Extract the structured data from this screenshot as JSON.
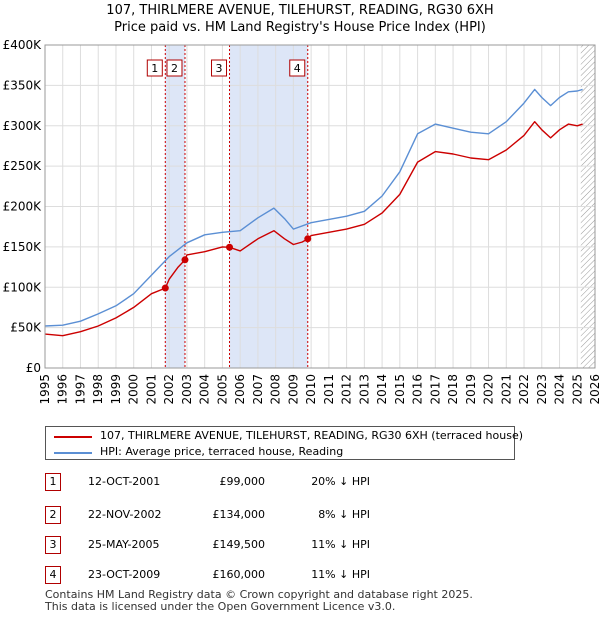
{
  "header": {
    "title_line1": "107, THIRLMERE AVENUE, TILEHURST, READING, RG30 6XH",
    "title_line2": "Price paid vs. HM Land Registry's House Price Index (HPI)"
  },
  "colors": {
    "property_line": "#cc0000",
    "hpi_line": "#5b8fd4",
    "shade": "#dde6f7",
    "grid": "#dddddd",
    "marker": "#cc0000",
    "badge_border": "#b00000"
  },
  "chart_data": {
    "type": "line",
    "title": "107, THIRLMERE AVENUE, TILEHURST, READING, RG30 6XH — Price paid vs. HM Land Registry's House Price Index (HPI)",
    "xlabel": "",
    "ylabel": "",
    "xlim": [
      1995,
      2026
    ],
    "ylim": [
      0,
      400000
    ],
    "x_ticks": [
      1995,
      1996,
      1997,
      1998,
      1999,
      2000,
      2001,
      2002,
      2003,
      2004,
      2005,
      2006,
      2007,
      2008,
      2009,
      2010,
      2011,
      2012,
      2013,
      2014,
      2015,
      2016,
      2017,
      2018,
      2019,
      2020,
      2021,
      2022,
      2023,
      2024,
      2025,
      2026
    ],
    "y_ticks": [
      {
        "value": 0,
        "label": "£0"
      },
      {
        "value": 50000,
        "label": "£50K"
      },
      {
        "value": 100000,
        "label": "£100K"
      },
      {
        "value": 150000,
        "label": "£150K"
      },
      {
        "value": 200000,
        "label": "£200K"
      },
      {
        "value": 250000,
        "label": "£250K"
      },
      {
        "value": 300000,
        "label": "£300K"
      },
      {
        "value": 350000,
        "label": "£350K"
      },
      {
        "value": 400000,
        "label": "£400K"
      }
    ],
    "grid": true,
    "shaded_ranges": [
      [
        2001.78,
        2002.89
      ],
      [
        2005.4,
        2009.81
      ]
    ],
    "future_hatch_from": 2025.2,
    "series": [
      {
        "name": "107, THIRLMERE AVENUE, TILEHURST, READING, RG30 6XH (terraced house)",
        "x": [
          1995,
          1996,
          1997,
          1998,
          1999,
          2000,
          2001,
          2001.78,
          2002,
          2002.5,
          2002.89,
          2003,
          2004,
          2005,
          2005.4,
          2006,
          2007,
          2007.9,
          2008.5,
          2009,
          2009.5,
          2009.81,
          2010,
          2011,
          2012,
          2013,
          2014,
          2015,
          2016,
          2017,
          2018,
          2019,
          2020,
          2021,
          2022,
          2022.6,
          2023,
          2023.5,
          2024,
          2024.5,
          2025,
          2025.3
        ],
        "values": [
          42000,
          40000,
          45000,
          52000,
          62000,
          75000,
          92000,
          99000,
          110000,
          125000,
          134000,
          140000,
          144000,
          150000,
          149500,
          145000,
          160000,
          170000,
          160000,
          153000,
          156000,
          160000,
          164000,
          168000,
          172000,
          178000,
          192000,
          215000,
          255000,
          268000,
          265000,
          260000,
          258000,
          270000,
          288000,
          305000,
          295000,
          285000,
          295000,
          302000,
          300000,
          302000
        ]
      },
      {
        "name": "HPI: Average price, terraced house, Reading",
        "x": [
          1995,
          1996,
          1997,
          1998,
          1999,
          2000,
          2001,
          2002,
          2003,
          2004,
          2005,
          2006,
          2007,
          2007.9,
          2008.5,
          2009,
          2010,
          2011,
          2012,
          2013,
          2014,
          2015,
          2016,
          2017,
          2018,
          2019,
          2020,
          2021,
          2022,
          2022.6,
          2023,
          2023.5,
          2024,
          2024.5,
          2025,
          2025.3
        ],
        "values": [
          52000,
          53000,
          58000,
          67000,
          77000,
          92000,
          115000,
          138000,
          155000,
          165000,
          168000,
          170000,
          186000,
          198000,
          185000,
          172000,
          180000,
          184000,
          188000,
          194000,
          213000,
          243000,
          290000,
          302000,
          297000,
          292000,
          290000,
          305000,
          328000,
          345000,
          335000,
          325000,
          335000,
          342000,
          343000,
          345000
        ]
      }
    ],
    "sales": [
      {
        "n": "1",
        "x": 2001.78,
        "value": 99000
      },
      {
        "n": "2",
        "x": 2002.89,
        "value": 134000
      },
      {
        "n": "3",
        "x": 2005.4,
        "value": 149500
      },
      {
        "n": "4",
        "x": 2009.81,
        "value": 160000
      }
    ]
  },
  "legend": {
    "property_label": "107, THIRLMERE AVENUE, TILEHURST, READING, RG30 6XH (terraced house)",
    "hpi_label": "HPI: Average price, terraced house, Reading"
  },
  "sales_table": [
    {
      "n": "1",
      "date": "12-OCT-2001",
      "price": "£99,000",
      "hpi": "20% ↓ HPI"
    },
    {
      "n": "2",
      "date": "22-NOV-2002",
      "price": "£134,000",
      "hpi": "8% ↓ HPI"
    },
    {
      "n": "3",
      "date": "25-MAY-2005",
      "price": "£149,500",
      "hpi": "11% ↓ HPI"
    },
    {
      "n": "4",
      "date": "23-OCT-2009",
      "price": "£160,000",
      "hpi": "11% ↓ HPI"
    }
  ],
  "footer": {
    "line1": "Contains HM Land Registry data © Crown copyright and database right 2025.",
    "line2": "This data is licensed under the Open Government Licence v3.0."
  }
}
